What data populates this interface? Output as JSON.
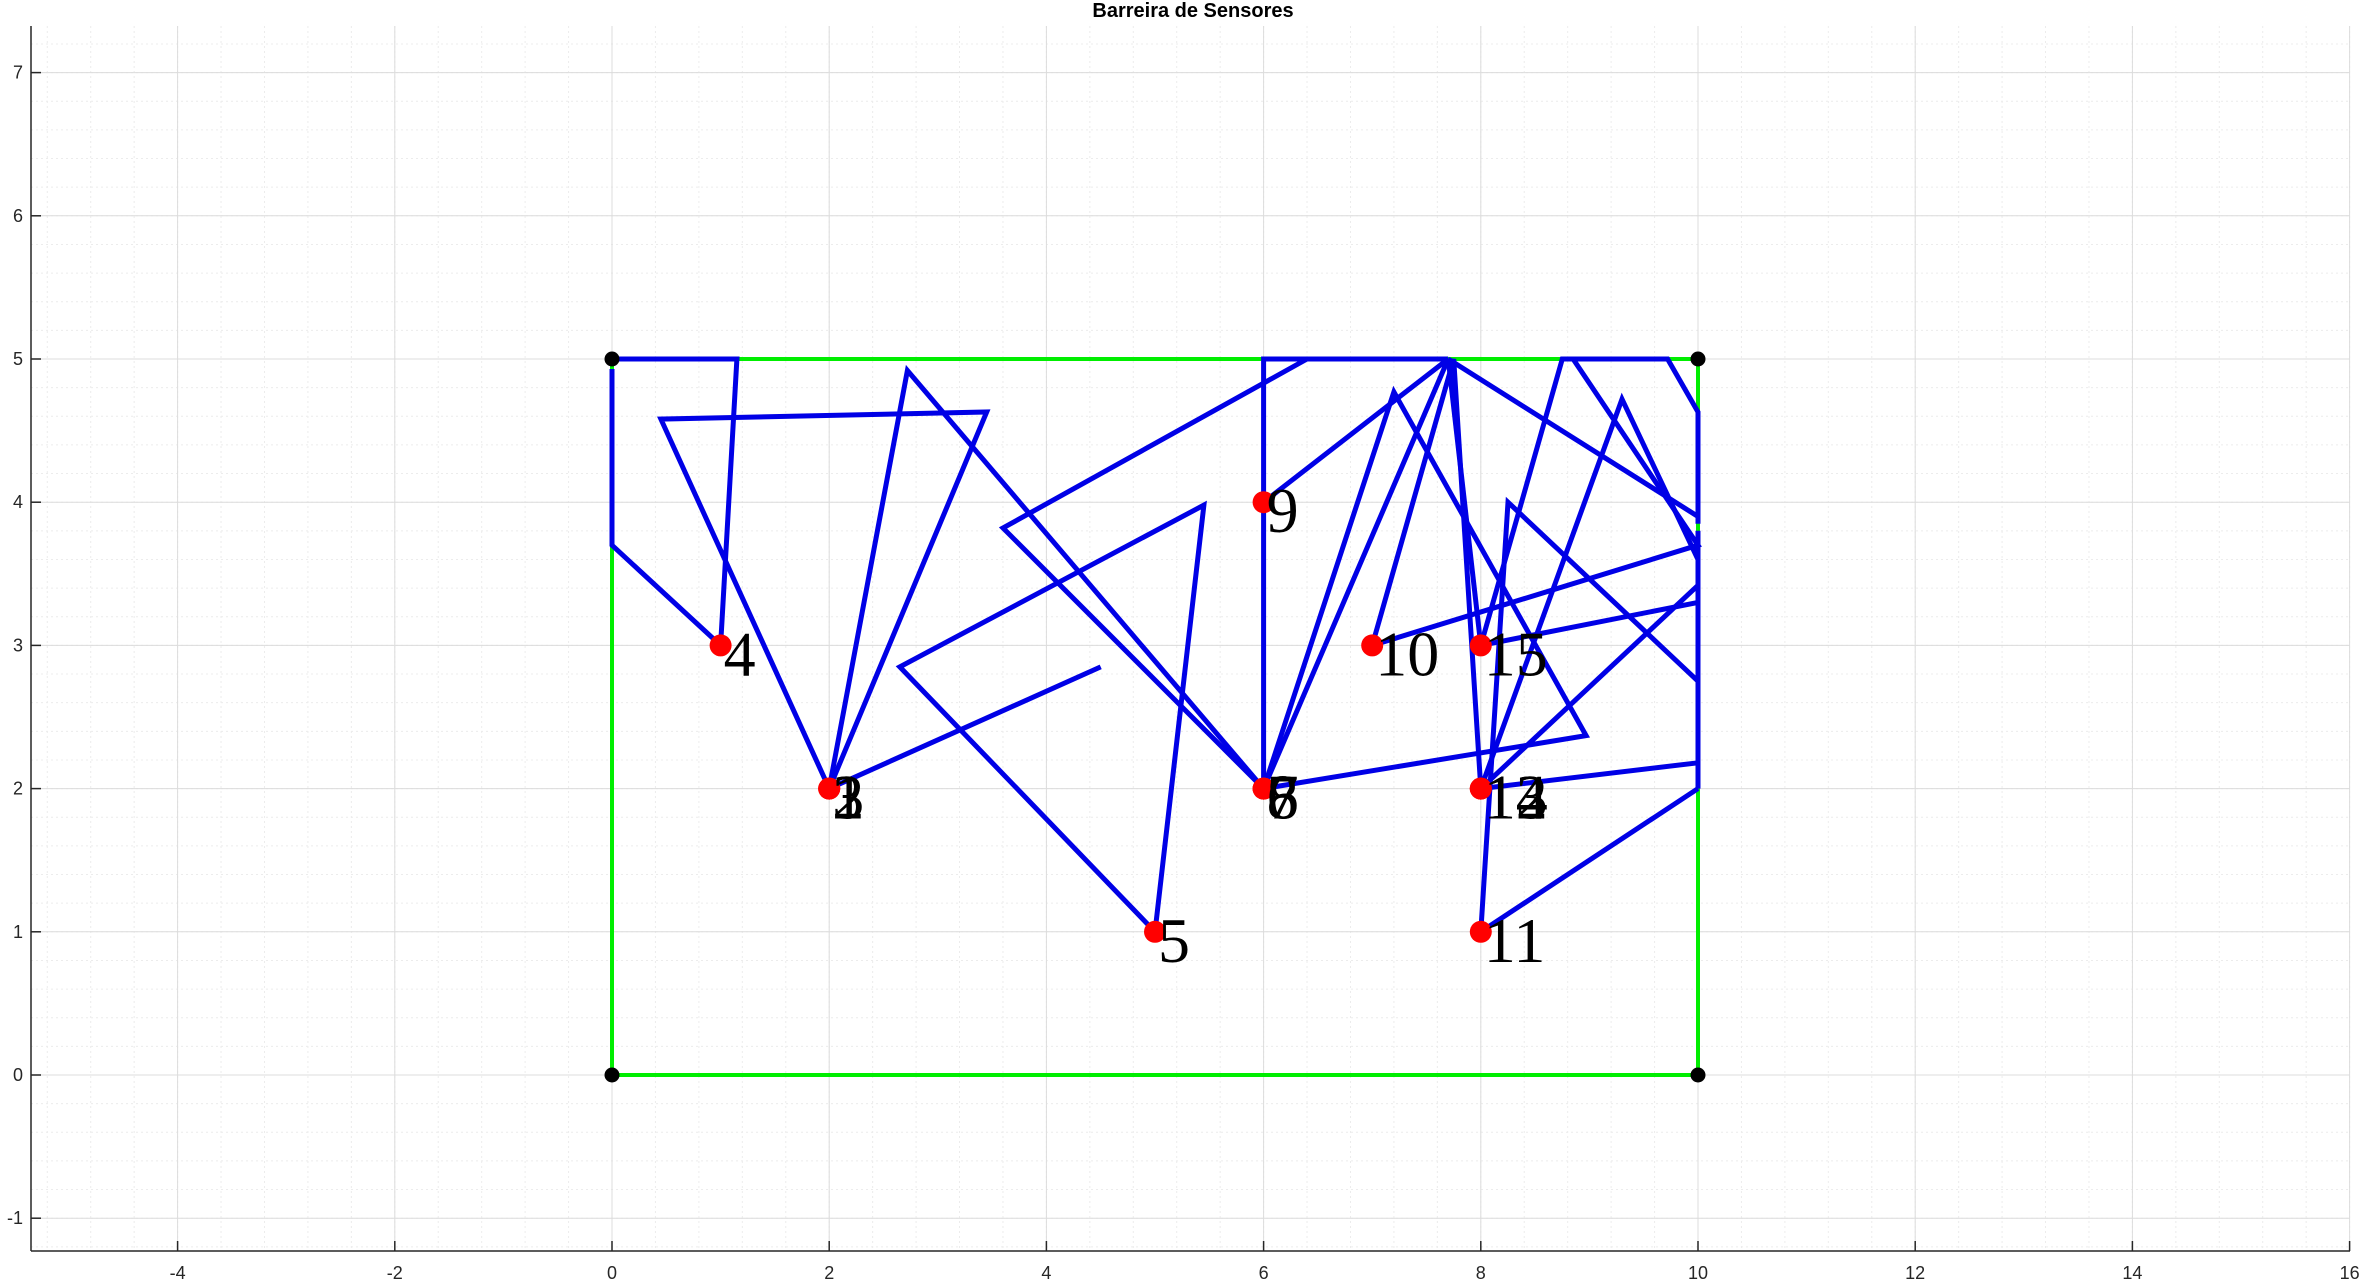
{
  "chart_data": {
    "type": "line",
    "title": "Barreira de Sensores",
    "xlabel": "",
    "ylabel": "",
    "xlim": [
      -5.4,
      16
    ],
    "ylim": [
      -1.25,
      7.3
    ],
    "xticks": [
      -4,
      -2,
      0,
      2,
      4,
      6,
      8,
      10,
      12,
      14,
      16
    ],
    "yticks": [
      -1,
      0,
      1,
      2,
      3,
      4,
      5,
      6,
      7
    ],
    "grid": true,
    "minor_grid": true,
    "colors": {
      "boundary": "#00ee00",
      "path": "#0000e6",
      "sensor": "#ff0000",
      "corner": "#000000",
      "grid": "#dcdcdc",
      "axis": "#262626"
    },
    "boundary": [
      [
        0,
        0
      ],
      [
        10,
        0
      ],
      [
        10,
        5
      ],
      [
        0,
        5
      ],
      [
        0,
        0
      ]
    ],
    "corners": [
      [
        0,
        0
      ],
      [
        10,
        0
      ],
      [
        10,
        5
      ],
      [
        0,
        5
      ]
    ],
    "sensors": [
      {
        "label": "1",
        "x": 2,
        "y": 2
      },
      {
        "label": "2",
        "x": 2,
        "y": 2
      },
      {
        "label": "3",
        "x": 2,
        "y": 2
      },
      {
        "label": "4",
        "x": 1,
        "y": 3
      },
      {
        "label": "5",
        "x": 5,
        "y": 1
      },
      {
        "label": "6",
        "x": 6,
        "y": 2
      },
      {
        "label": "7",
        "x": 6,
        "y": 2
      },
      {
        "label": "8",
        "x": 6,
        "y": 2
      },
      {
        "label": "9",
        "x": 6,
        "y": 4
      },
      {
        "label": "10",
        "x": 7,
        "y": 3
      },
      {
        "label": "11",
        "x": 8,
        "y": 1
      },
      {
        "label": "12",
        "x": 8,
        "y": 2
      },
      {
        "label": "13",
        "x": 8,
        "y": 2
      },
      {
        "label": "14",
        "x": 8,
        "y": 2
      },
      {
        "label": "15",
        "x": 8,
        "y": 3
      }
    ],
    "paths": [
      [
        [
          0,
          4.93
        ],
        [
          0,
          3.7
        ],
        [
          1,
          3
        ]
      ],
      [
        [
          0,
          5
        ],
        [
          1.15,
          5
        ],
        [
          1,
          3
        ]
      ],
      [
        [
          2,
          2
        ],
        [
          0.45,
          4.58
        ],
        [
          3.45,
          4.63
        ],
        [
          2,
          2
        ]
      ],
      [
        [
          2,
          2
        ],
        [
          2.72,
          4.92
        ],
        [
          6,
          2
        ]
      ],
      [
        [
          2,
          2
        ],
        [
          4.5,
          2.85
        ]
      ],
      [
        [
          5,
          1
        ],
        [
          2.65,
          2.85
        ],
        [
          5.45,
          3.98
        ],
        [
          5,
          1
        ]
      ],
      [
        [
          6,
          2
        ],
        [
          3.6,
          3.82
        ],
        [
          6.4,
          5
        ]
      ],
      [
        [
          6,
          2
        ],
        [
          6,
          5
        ],
        [
          6.35,
          5
        ]
      ],
      [
        [
          6,
          2
        ],
        [
          8.97,
          2.37
        ],
        [
          7.2,
          4.77
        ],
        [
          6,
          2
        ]
      ],
      [
        [
          6,
          4
        ],
        [
          7.7,
          5
        ],
        [
          6,
          2
        ]
      ],
      [
        [
          7,
          3
        ],
        [
          7.75,
          5
        ],
        [
          8,
          2
        ]
      ],
      [
        [
          7,
          3
        ],
        [
          10,
          3.7
        ],
        [
          8.85,
          5
        ]
      ],
      [
        [
          7.7,
          5
        ],
        [
          10,
          3.9
        ]
      ],
      [
        [
          7.7,
          5
        ],
        [
          8,
          3
        ]
      ],
      [
        [
          8,
          3
        ],
        [
          8.75,
          5
        ],
        [
          9.72,
          5
        ],
        [
          10,
          4.63
        ],
        [
          10,
          3.85
        ]
      ],
      [
        [
          8,
          3
        ],
        [
          10,
          3.3
        ]
      ],
      [
        [
          8,
          2
        ],
        [
          9.3,
          4.72
        ],
        [
          10,
          3.6
        ]
      ],
      [
        [
          8,
          2
        ],
        [
          10,
          3.42
        ]
      ],
      [
        [
          8,
          2
        ],
        [
          10,
          2.18
        ]
      ],
      [
        [
          8,
          1
        ],
        [
          8.25,
          4
        ],
        [
          10,
          2.75
        ]
      ],
      [
        [
          8,
          1
        ],
        [
          10,
          2
        ]
      ],
      [
        [
          10,
          3.8
        ],
        [
          10,
          2
        ]
      ],
      [
        [
          6,
          5
        ],
        [
          7.7,
          5
        ]
      ]
    ]
  }
}
